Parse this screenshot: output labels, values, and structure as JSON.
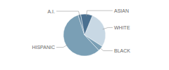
{
  "chart_data": {
    "type": "pie",
    "categories": [
      "WHITE",
      "BLACK",
      "HISPANIC",
      "A.I.",
      "ASIAN"
    ],
    "values": [
      28,
      4,
      57,
      2,
      9
    ],
    "colors": [
      "#c8d8e4",
      "#7a9fb5",
      "#7a9fb5",
      "#5a82a0",
      "#4a7090"
    ]
  }
}
